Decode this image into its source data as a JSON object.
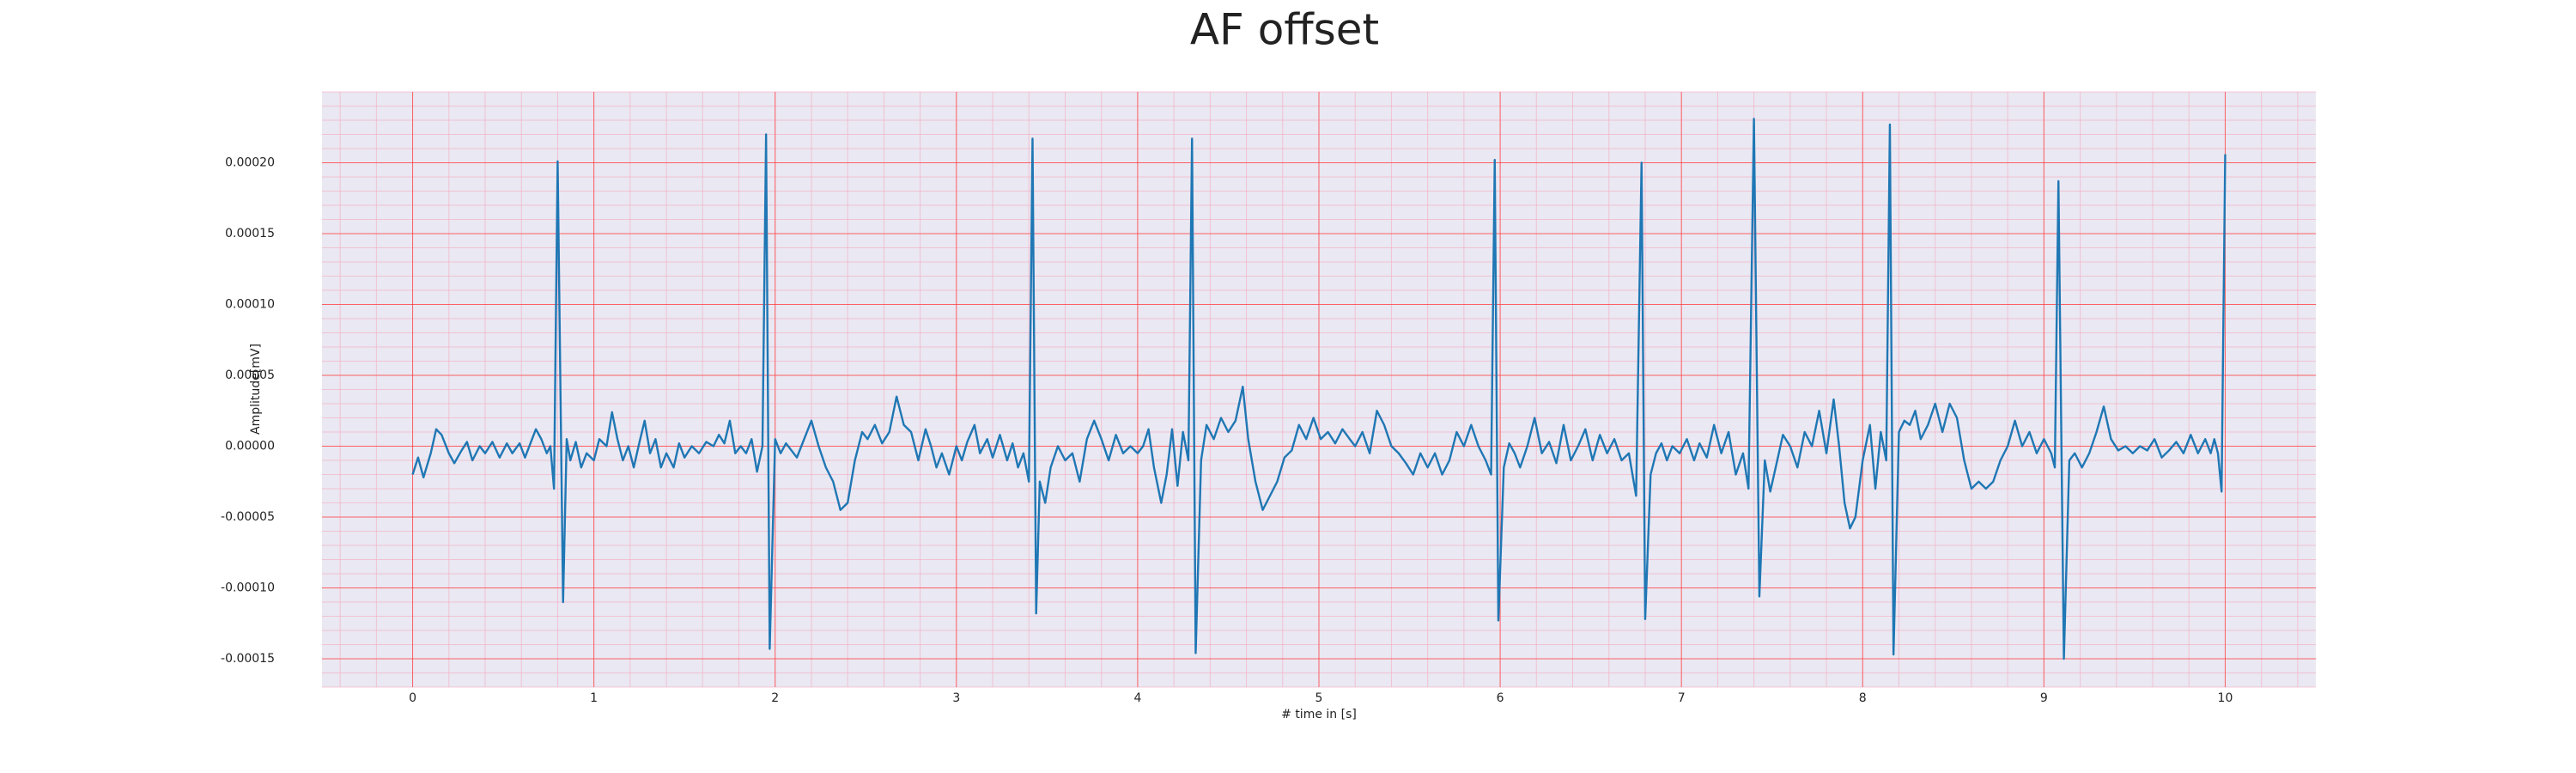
{
  "chart_data": {
    "type": "line",
    "title": "AF offset",
    "xlabel": "# time in [s]",
    "ylabel": "Amplitude[mV]",
    "color": "#1f77b4",
    "grid": true,
    "xlim": [
      -0.5,
      10.5
    ],
    "xticks": [
      0,
      1,
      2,
      3,
      4,
      5,
      6,
      7,
      8,
      9,
      10
    ],
    "ylim": [
      -0.00017,
      0.00025
    ],
    "yticks": [
      {
        "value": -0.00015,
        "label": "-0.00015"
      },
      {
        "value": -0.0001,
        "label": "-0.00010"
      },
      {
        "value": -5e-05,
        "label": "-0.00005"
      },
      {
        "value": 0,
        "label": "0.00000"
      },
      {
        "value": 5e-05,
        "label": "0.00005"
      },
      {
        "value": 0.0001,
        "label": "0.00010"
      },
      {
        "value": 0.00015,
        "label": "0.00015"
      },
      {
        "value": 0.0002,
        "label": "0.00020"
      }
    ],
    "x": [
      0.0,
      0.03,
      0.06,
      0.1,
      0.13,
      0.16,
      0.2,
      0.23,
      0.27,
      0.3,
      0.33,
      0.37,
      0.4,
      0.44,
      0.48,
      0.52,
      0.55,
      0.59,
      0.62,
      0.65,
      0.68,
      0.71,
      0.74,
      0.76,
      0.78,
      0.8,
      0.83,
      0.85,
      0.87,
      0.9,
      0.93,
      0.96,
      1.0,
      1.03,
      1.07,
      1.1,
      1.13,
      1.16,
      1.19,
      1.22,
      1.25,
      1.28,
      1.31,
      1.34,
      1.37,
      1.4,
      1.44,
      1.47,
      1.5,
      1.54,
      1.58,
      1.62,
      1.66,
      1.69,
      1.72,
      1.75,
      1.78,
      1.81,
      1.84,
      1.87,
      1.9,
      1.93,
      1.95,
      1.97,
      2.0,
      2.03,
      2.06,
      2.09,
      2.12,
      2.16,
      2.2,
      2.24,
      2.28,
      2.32,
      2.36,
      2.4,
      2.44,
      2.48,
      2.51,
      2.55,
      2.59,
      2.63,
      2.67,
      2.71,
      2.75,
      2.79,
      2.83,
      2.86,
      2.89,
      2.92,
      2.96,
      3.0,
      3.03,
      3.06,
      3.1,
      3.13,
      3.17,
      3.2,
      3.24,
      3.28,
      3.31,
      3.34,
      3.37,
      3.4,
      3.42,
      3.44,
      3.46,
      3.49,
      3.52,
      3.56,
      3.6,
      3.64,
      3.68,
      3.72,
      3.76,
      3.8,
      3.84,
      3.88,
      3.92,
      3.96,
      4.0,
      4.03,
      4.06,
      4.09,
      4.13,
      4.16,
      4.19,
      4.22,
      4.25,
      4.28,
      4.3,
      4.32,
      4.35,
      4.38,
      4.42,
      4.46,
      4.5,
      4.54,
      4.58,
      4.61,
      4.65,
      4.69,
      4.73,
      4.77,
      4.81,
      4.85,
      4.89,
      4.93,
      4.97,
      5.01,
      5.05,
      5.09,
      5.13,
      5.17,
      5.2,
      5.24,
      5.28,
      5.32,
      5.36,
      5.4,
      5.44,
      5.48,
      5.52,
      5.56,
      5.6,
      5.64,
      5.68,
      5.72,
      5.76,
      5.8,
      5.84,
      5.88,
      5.92,
      5.95,
      5.97,
      5.99,
      6.02,
      6.05,
      6.08,
      6.11,
      6.15,
      6.19,
      6.23,
      6.27,
      6.31,
      6.35,
      6.39,
      6.43,
      6.47,
      6.51,
      6.55,
      6.59,
      6.63,
      6.67,
      6.71,
      6.75,
      6.78,
      6.8,
      6.83,
      6.86,
      6.89,
      6.92,
      6.95,
      6.99,
      7.03,
      7.07,
      7.1,
      7.14,
      7.18,
      7.22,
      7.26,
      7.3,
      7.34,
      7.37,
      7.4,
      7.43,
      7.46,
      7.49,
      7.52,
      7.56,
      7.6,
      7.64,
      7.68,
      7.72,
      7.76,
      7.8,
      7.84,
      7.87,
      7.9,
      7.93,
      7.96,
      8.0,
      8.04,
      8.07,
      8.1,
      8.13,
      8.15,
      8.17,
      8.2,
      8.23,
      8.26,
      8.29,
      8.32,
      8.36,
      8.4,
      8.44,
      8.48,
      8.52,
      8.56,
      8.6,
      8.64,
      8.68,
      8.72,
      8.76,
      8.8,
      8.84,
      8.88,
      8.92,
      8.96,
      9.0,
      9.04,
      9.06,
      9.08,
      9.11,
      9.14,
      9.17,
      9.21,
      9.25,
      9.29,
      9.33,
      9.37,
      9.41,
      9.45,
      9.49,
      9.53,
      9.57,
      9.61,
      9.65,
      9.69,
      9.73,
      9.77,
      9.81,
      9.85,
      9.89,
      9.92,
      9.94,
      9.96,
      9.98,
      10.0
    ],
    "values": [
      -2e-05,
      -8e-06,
      -2.2e-05,
      -5e-06,
      1.2e-05,
      8e-06,
      -5e-06,
      -1.2e-05,
      -3e-06,
      3e-06,
      -1e-05,
      0,
      -5e-06,
      3e-06,
      -8e-06,
      2e-06,
      -5e-06,
      2e-06,
      -8e-06,
      2e-06,
      1.2e-05,
      5e-06,
      -5e-06,
      0,
      -3e-05,
      0.000201,
      -0.00011,
      5e-06,
      -1e-05,
      3e-06,
      -1.5e-05,
      -5e-06,
      -1e-05,
      5e-06,
      0,
      2.4e-05,
      5e-06,
      -1e-05,
      0,
      -1.5e-05,
      2e-06,
      1.8e-05,
      -5e-06,
      5e-06,
      -1.5e-05,
      -5e-06,
      -1.5e-05,
      2e-06,
      -8e-06,
      0,
      -5e-06,
      3e-06,
      0,
      8e-06,
      2e-06,
      1.8e-05,
      -5e-06,
      0,
      -5e-06,
      5e-06,
      -1.8e-05,
      0,
      0.00022,
      -0.000143,
      5e-06,
      -5e-06,
      2e-06,
      -3e-06,
      -8e-06,
      5e-06,
      1.8e-05,
      0,
      -1.5e-05,
      -2.5e-05,
      -4.5e-05,
      -4e-05,
      -1e-05,
      1e-05,
      5e-06,
      1.5e-05,
      2e-06,
      1e-05,
      3.5e-05,
      1.5e-05,
      1e-05,
      -1e-05,
      1.2e-05,
      0,
      -1.5e-05,
      -5e-06,
      -2e-05,
      0,
      -1e-05,
      3e-06,
      1.5e-05,
      -5e-06,
      5e-06,
      -8e-06,
      8e-06,
      -1e-05,
      2e-06,
      -1.5e-05,
      -5e-06,
      -2.5e-05,
      0.000217,
      -0.000118,
      -2.5e-05,
      -4e-05,
      -1.5e-05,
      0,
      -1e-05,
      -5e-06,
      -2.5e-05,
      5e-06,
      1.8e-05,
      5e-06,
      -1e-05,
      8e-06,
      -5e-06,
      0,
      -5e-06,
      0,
      1.2e-05,
      -1.5e-05,
      -4e-05,
      -2e-05,
      1.2e-05,
      -2.8e-05,
      1e-05,
      -1e-05,
      0.000217,
      -0.000146,
      -1e-05,
      1.5e-05,
      5e-06,
      2e-05,
      1e-05,
      1.8e-05,
      4.2e-05,
      5e-06,
      -2.5e-05,
      -4.5e-05,
      -3.5e-05,
      -2.5e-05,
      -8e-06,
      -3e-06,
      1.5e-05,
      5e-06,
      2e-05,
      5e-06,
      1e-05,
      2e-06,
      1.2e-05,
      5e-06,
      0,
      1e-05,
      -5e-06,
      2.5e-05,
      1.5e-05,
      0,
      -5e-06,
      -1.2e-05,
      -2e-05,
      -5e-06,
      -1.5e-05,
      -5e-06,
      -2e-05,
      -1e-05,
      1e-05,
      0,
      1.5e-05,
      0,
      -1e-05,
      -2e-05,
      0.000202,
      -0.000123,
      -1.5e-05,
      2e-06,
      -5e-06,
      -1.5e-05,
      0,
      2e-05,
      -5e-06,
      3e-06,
      -1.2e-05,
      1.5e-05,
      -1e-05,
      0,
      1.2e-05,
      -1e-05,
      8e-06,
      -5e-06,
      5e-06,
      -1e-05,
      -5e-06,
      -3.5e-05,
      0.0002,
      -0.000122,
      -2e-05,
      -5e-06,
      2e-06,
      -1e-05,
      0,
      -5e-06,
      5e-06,
      -1e-05,
      2e-06,
      -8e-06,
      1.5e-05,
      -5e-06,
      1e-05,
      -2e-05,
      -5e-06,
      -3e-05,
      0.000231,
      -0.000106,
      -1e-05,
      -3.2e-05,
      -1.5e-05,
      8e-06,
      0,
      -1.5e-05,
      1e-05,
      0,
      2.5e-05,
      -5e-06,
      3.3e-05,
      0,
      -4e-05,
      -5.8e-05,
      -5e-05,
      -1e-05,
      1.5e-05,
      -3e-05,
      1e-05,
      -1e-05,
      0.000227,
      -0.000147,
      1e-05,
      1.8e-05,
      1.5e-05,
      2.5e-05,
      5e-06,
      1.5e-05,
      3e-05,
      1e-05,
      3e-05,
      2e-05,
      -1e-05,
      -3e-05,
      -2.5e-05,
      -3e-05,
      -2.5e-05,
      -1e-05,
      0,
      1.8e-05,
      0,
      1e-05,
      -5e-06,
      5e-06,
      -5e-06,
      -1.5e-05,
      0.000187,
      -0.00015,
      -1e-05,
      -5e-06,
      -1.5e-05,
      -5e-06,
      1e-05,
      2.8e-05,
      5e-06,
      -3e-06,
      0,
      -5e-06,
      0,
      -3e-06,
      5e-06,
      -8e-06,
      -3e-06,
      3e-06,
      -5e-06,
      8e-06,
      -5e-06,
      5e-06,
      -5e-06,
      5e-06,
      -5e-06,
      -3.2e-05,
      0.000206
    ]
  }
}
